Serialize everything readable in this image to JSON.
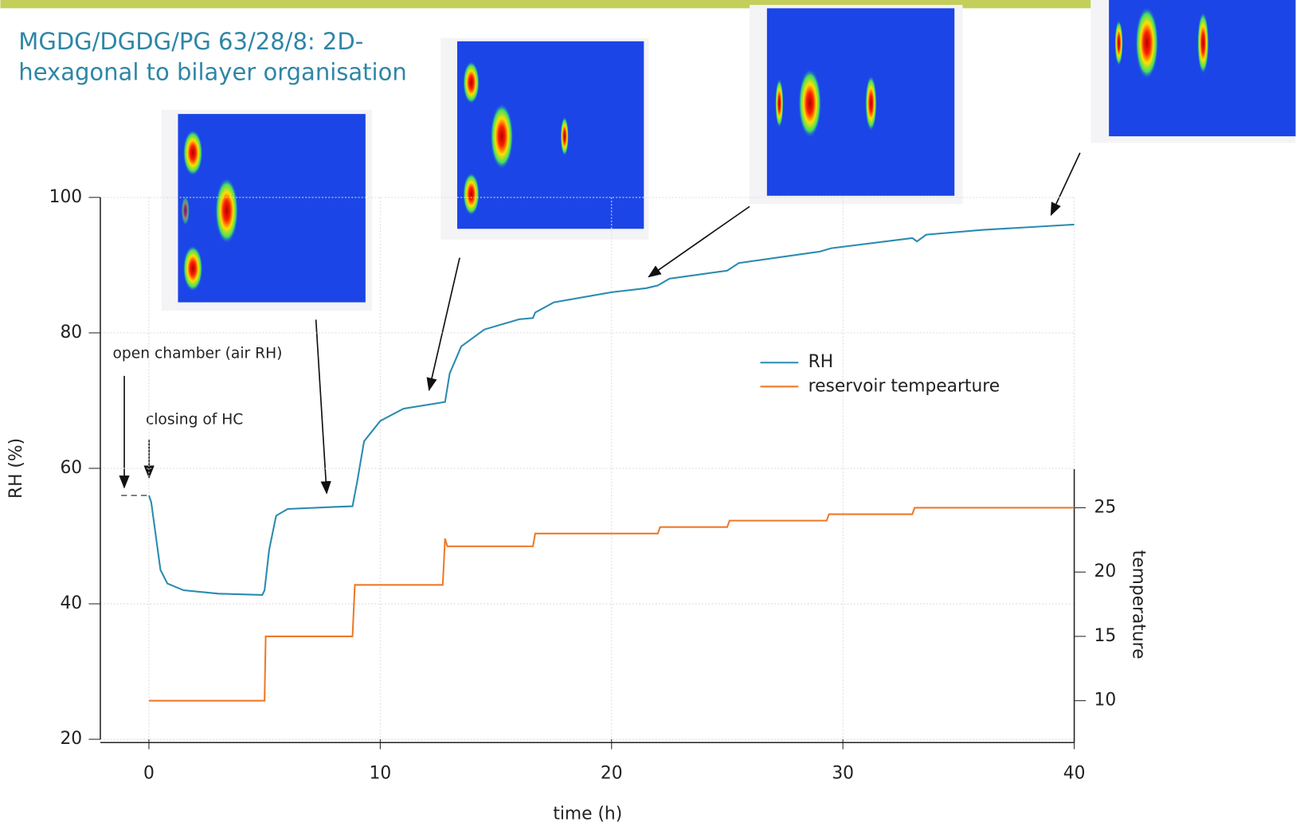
{
  "chart_data": {
    "type": "line",
    "title": [
      "MGDG/DGDG/PG 63/28/8: 2D-",
      "hexagonal to bilayer organisation"
    ],
    "xlabel": "time (h)",
    "ylabel": "RH (%)",
    "y2label": "temperature",
    "xlim": [
      -2.1,
      40
    ],
    "xticks": [
      0,
      10,
      20,
      30,
      40
    ],
    "ylim": [
      20,
      100
    ],
    "yticks": [
      20,
      40,
      60,
      80,
      100
    ],
    "y2lim": [
      7,
      28
    ],
    "y2ticks": [
      10,
      15,
      20,
      25
    ],
    "grid": true,
    "legend": "upper right",
    "annotations": [
      "open chamber (air RH)",
      "closing of HC"
    ],
    "pre_segment": {
      "x": [
        -1.2,
        0
      ],
      "values": [
        56,
        56
      ],
      "color": "#555555",
      "dash": "7 5"
    },
    "series": [
      {
        "name": "RH",
        "color": "#2a8bb0",
        "x": [
          0,
          0.1,
          0.3,
          0.5,
          0.8,
          1.5,
          3,
          4.9,
          5.0,
          5.2,
          5.5,
          6,
          8,
          8.8,
          9,
          9.3,
          10,
          11,
          12.8,
          13,
          13.5,
          14.5,
          16,
          16.6,
          16.7,
          17.5,
          20,
          21.5,
          22,
          22.5,
          25,
          25.5,
          29,
          29.5,
          33,
          33.2,
          33.6,
          36,
          40
        ],
        "values": [
          56,
          55,
          50,
          45,
          43,
          42,
          41.5,
          41.3,
          42,
          48,
          53,
          54,
          54.3,
          54.4,
          58,
          64,
          67,
          68.8,
          69.8,
          74,
          78,
          80.5,
          82,
          82.2,
          83,
          84.5,
          86,
          86.6,
          87,
          88,
          89.2,
          90.3,
          92,
          92.5,
          94,
          93.5,
          94.5,
          95.2,
          96
        ]
      },
      {
        "name": "reservoir tempearture",
        "color": "#ee7a2a",
        "axis": "y2",
        "x": [
          0,
          5.0,
          5.05,
          8.8,
          8.9,
          12.7,
          12.8,
          12.9,
          16.6,
          16.7,
          22,
          22.1,
          25,
          25.1,
          29.3,
          29.4,
          33,
          33.1,
          40
        ],
        "values": [
          10,
          10,
          15,
          15,
          19,
          19,
          22.6,
          22,
          22,
          23,
          23,
          23.5,
          23.5,
          24,
          24,
          24.5,
          24.5,
          25,
          25
        ]
      }
    ]
  }
}
